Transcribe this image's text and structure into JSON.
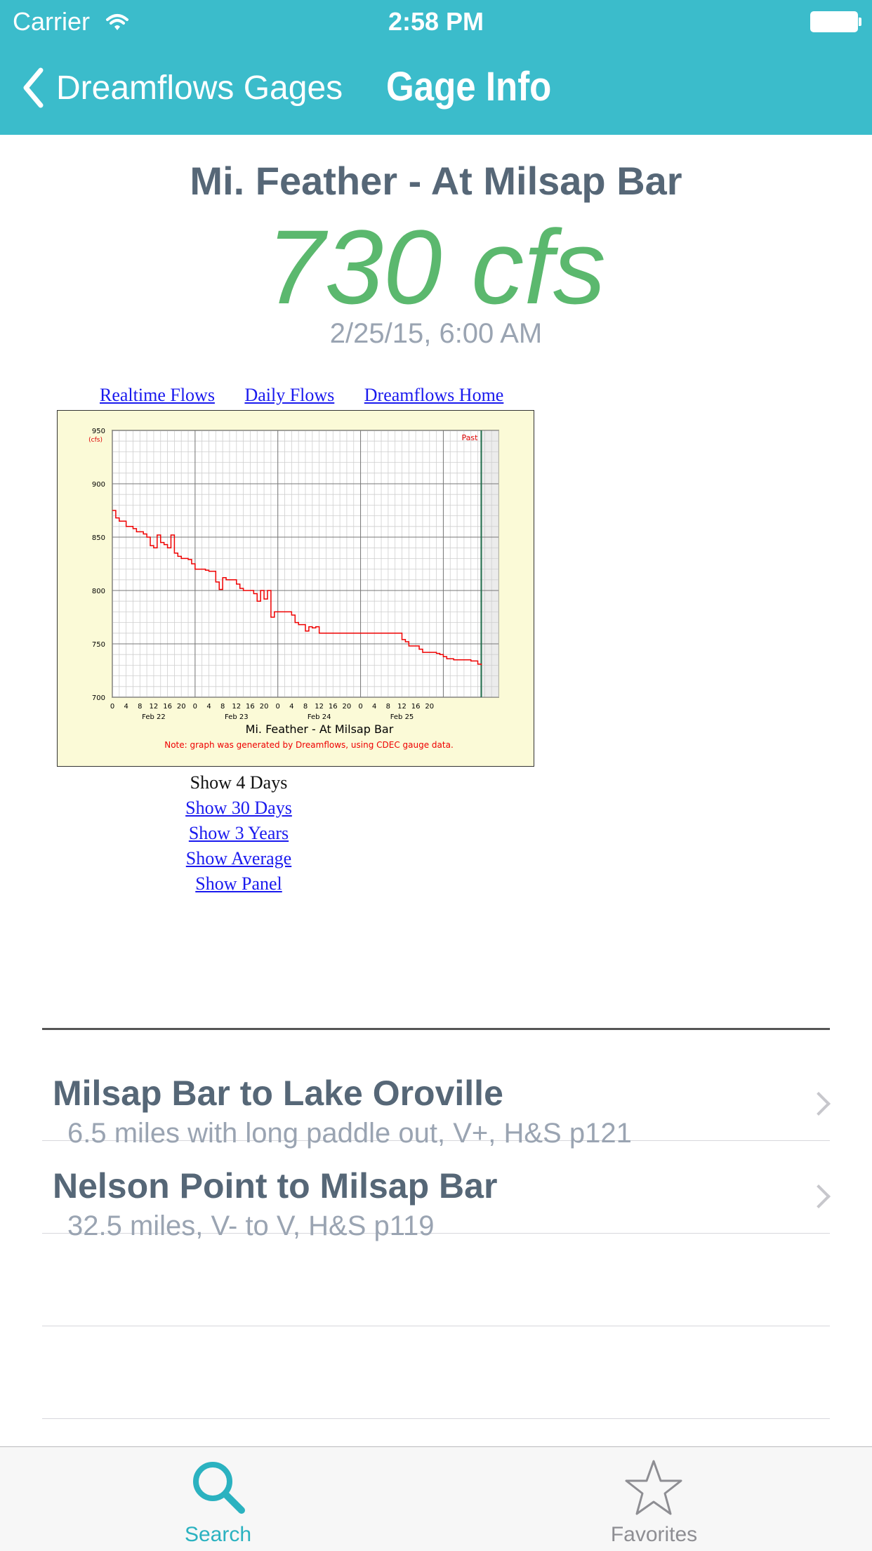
{
  "status_bar": {
    "carrier": "Carrier",
    "time": "2:58 PM"
  },
  "nav": {
    "back_label": "Dreamflows Gages",
    "title": "Gage Info"
  },
  "gage": {
    "name": "Mi. Feather - At Milsap Bar",
    "flow": "730 cfs",
    "timestamp": "2/25/15, 6:00 AM"
  },
  "web": {
    "links": [
      "Realtime Flows",
      "Daily Flows",
      "Dreamflows Home"
    ],
    "graph_options": [
      {
        "label": "Show 4 Days",
        "link": false
      },
      {
        "label": "Show 30 Days",
        "link": true
      },
      {
        "label": "Show 3 Years",
        "link": true
      },
      {
        "label": "Show Average",
        "link": true
      },
      {
        "label": "Show Panel",
        "link": true
      }
    ]
  },
  "chart_data": {
    "type": "line",
    "title": "Mi. Feather - At Milsap Bar",
    "ylabel": "(cfs)",
    "ylim": [
      700,
      950
    ],
    "yticks": [
      700,
      750,
      800,
      850,
      900,
      950
    ],
    "x_hour_ticks": [
      "0",
      "4",
      "8",
      "12",
      "16",
      "20",
      "0",
      "4",
      "8",
      "12",
      "16",
      "20",
      "0",
      "4",
      "8",
      "12",
      "16",
      "20",
      "0",
      "4",
      "8",
      "12",
      "16",
      "20"
    ],
    "day_labels": [
      "Feb 22",
      "Feb 23",
      "Feb 24",
      "Feb 25"
    ],
    "past_label": "Past",
    "note": "Note: graph was generated by Dreamflows, using CDEC gauge data.",
    "grid": true,
    "series": [
      {
        "color": "#ee0000",
        "points": [
          [
            0,
            875
          ],
          [
            1,
            868
          ],
          [
            2,
            865
          ],
          [
            3,
            865
          ],
          [
            4,
            860
          ],
          [
            5,
            860
          ],
          [
            6,
            858
          ],
          [
            7,
            855
          ],
          [
            8,
            855
          ],
          [
            9,
            853
          ],
          [
            10,
            850
          ],
          [
            11,
            842
          ],
          [
            12,
            840
          ],
          [
            13,
            852
          ],
          [
            14,
            845
          ],
          [
            15,
            843
          ],
          [
            16,
            840
          ],
          [
            17,
            852
          ],
          [
            18,
            835
          ],
          [
            19,
            832
          ],
          [
            20,
            830
          ],
          [
            21,
            830
          ],
          [
            22,
            829
          ],
          [
            23,
            825
          ],
          [
            24,
            820
          ],
          [
            25,
            820
          ],
          [
            26,
            820
          ],
          [
            27,
            819
          ],
          [
            28,
            818
          ],
          [
            29,
            818
          ],
          [
            30,
            808
          ],
          [
            31,
            801
          ],
          [
            32,
            812
          ],
          [
            33,
            810
          ],
          [
            34,
            810
          ],
          [
            35,
            810
          ],
          [
            36,
            806
          ],
          [
            37,
            802
          ],
          [
            38,
            800
          ],
          [
            39,
            800
          ],
          [
            40,
            800
          ],
          [
            41,
            797
          ],
          [
            42,
            790
          ],
          [
            43,
            800
          ],
          [
            44,
            792
          ],
          [
            45,
            800
          ],
          [
            46,
            775
          ],
          [
            47,
            780
          ],
          [
            48,
            780
          ],
          [
            49,
            780
          ],
          [
            50,
            780
          ],
          [
            51,
            780
          ],
          [
            52,
            777
          ],
          [
            53,
            770
          ],
          [
            54,
            768
          ],
          [
            55,
            768
          ],
          [
            56,
            762
          ],
          [
            57,
            766
          ],
          [
            58,
            765
          ],
          [
            59,
            766
          ],
          [
            60,
            760
          ],
          [
            61,
            760
          ],
          [
            62,
            760
          ],
          [
            63,
            760
          ],
          [
            64,
            760
          ],
          [
            65,
            760
          ],
          [
            66,
            760
          ],
          [
            67,
            760
          ],
          [
            68,
            760
          ],
          [
            69,
            760
          ],
          [
            70,
            760
          ],
          [
            71,
            760
          ],
          [
            72,
            760
          ],
          [
            73,
            760
          ],
          [
            74,
            760
          ],
          [
            75,
            760
          ],
          [
            76,
            760
          ],
          [
            77,
            760
          ],
          [
            78,
            760
          ],
          [
            79,
            760
          ],
          [
            80,
            760
          ],
          [
            81,
            760
          ],
          [
            82,
            760
          ],
          [
            83,
            760
          ],
          [
            84,
            754
          ],
          [
            85,
            752
          ],
          [
            86,
            748
          ],
          [
            87,
            748
          ],
          [
            88,
            748
          ],
          [
            89,
            745
          ],
          [
            90,
            742
          ],
          [
            91,
            742
          ],
          [
            92,
            742
          ],
          [
            93,
            742
          ],
          [
            94,
            741
          ],
          [
            95,
            740
          ],
          [
            96,
            738
          ],
          [
            97,
            736
          ],
          [
            98,
            736
          ],
          [
            99,
            735
          ],
          [
            100,
            735
          ],
          [
            101,
            735
          ],
          [
            102,
            735
          ],
          [
            103,
            735
          ],
          [
            104,
            734
          ],
          [
            105,
            734
          ],
          [
            106,
            731
          ],
          [
            107,
            730
          ]
        ]
      }
    ]
  },
  "runs": [
    {
      "title": "Milsap Bar to Lake Oroville",
      "subtitle": "6.5 miles with long paddle out, V+, H&S p121"
    },
    {
      "title": "Nelson Point to Milsap Bar",
      "subtitle": "32.5 miles, V- to V, H&S p119"
    }
  ],
  "tabs": {
    "search": "Search",
    "favorites": "Favorites"
  },
  "colors": {
    "nav_bg": "#3bbccb",
    "accent": "#2bb2c0",
    "flow_green": "#5bb86e",
    "title_slate": "#566777",
    "subtle_gray": "#9aa4b2"
  }
}
